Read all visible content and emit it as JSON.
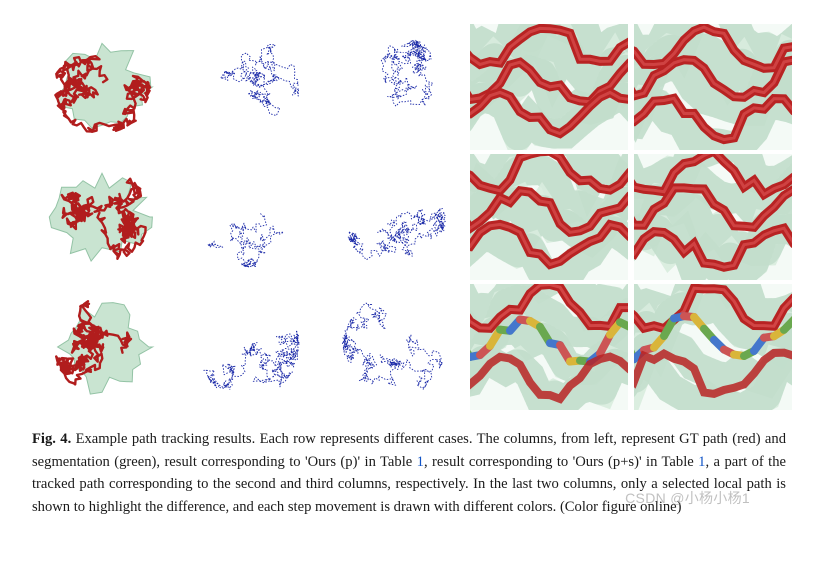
{
  "figure": {
    "caption_label": "Fig. 4.",
    "caption_body_1": " Example path tracking results. Each row represents different cases. The columns, from left, represent GT path (red) and segmentation (green), result corresponding to 'Ours (p)' in Table ",
    "ref1": "1",
    "caption_body_2": ", result corresponding to 'Ours (p+s)' in Table ",
    "ref2": "1",
    "caption_body_3": ", a part of the tracked path corresponding to the second and third columns, respectively. In the last two columns, only a selected local path is shown to highlight the difference, and each step movement is drawn with different colors. (Color figure online)",
    "watermark": "CSDN @小杨小杨1",
    "grid": {
      "rows": 3,
      "cols": 5
    },
    "styles": {
      "gt_path_color": "#b11d1d",
      "gt_seg_color": "#b8dcc2",
      "gt_seg_edge": "#6faf87",
      "trace_color": "#1b2aa8",
      "closeup_bg": "#d8ecde",
      "closeup_mesh": "#88b89a",
      "closeup_tube": "#b82323",
      "closeup_tube_hi": "#e25c5c",
      "closeup_alt_colors": [
        "#d9b53a",
        "#6aa84f",
        "#4477cc",
        "#cc5555"
      ]
    },
    "cells": [
      {
        "row": 0,
        "col": 0,
        "type": "gt",
        "seed": 11
      },
      {
        "row": 0,
        "col": 1,
        "type": "trace",
        "seed": 21,
        "density": 0.6
      },
      {
        "row": 0,
        "col": 2,
        "type": "trace",
        "seed": 31,
        "density": 0.7
      },
      {
        "row": 0,
        "col": 3,
        "type": "closeup",
        "seed": 41,
        "variant": "tube"
      },
      {
        "row": 0,
        "col": 4,
        "type": "closeup",
        "seed": 51,
        "variant": "tube"
      },
      {
        "row": 1,
        "col": 0,
        "type": "gt",
        "seed": 12
      },
      {
        "row": 1,
        "col": 1,
        "type": "trace",
        "seed": 22,
        "density": 0.25
      },
      {
        "row": 1,
        "col": 2,
        "type": "trace",
        "seed": 32,
        "density": 0.75
      },
      {
        "row": 1,
        "col": 3,
        "type": "closeup",
        "seed": 42,
        "variant": "tube"
      },
      {
        "row": 1,
        "col": 4,
        "type": "closeup",
        "seed": 52,
        "variant": "tube"
      },
      {
        "row": 2,
        "col": 0,
        "type": "gt",
        "seed": 13
      },
      {
        "row": 2,
        "col": 1,
        "type": "trace",
        "seed": 23,
        "density": 0.85
      },
      {
        "row": 2,
        "col": 2,
        "type": "trace",
        "seed": 33,
        "density": 0.85
      },
      {
        "row": 2,
        "col": 3,
        "type": "closeup",
        "seed": 43,
        "variant": "colored"
      },
      {
        "row": 2,
        "col": 4,
        "type": "closeup",
        "seed": 53,
        "variant": "colored"
      }
    ]
  }
}
